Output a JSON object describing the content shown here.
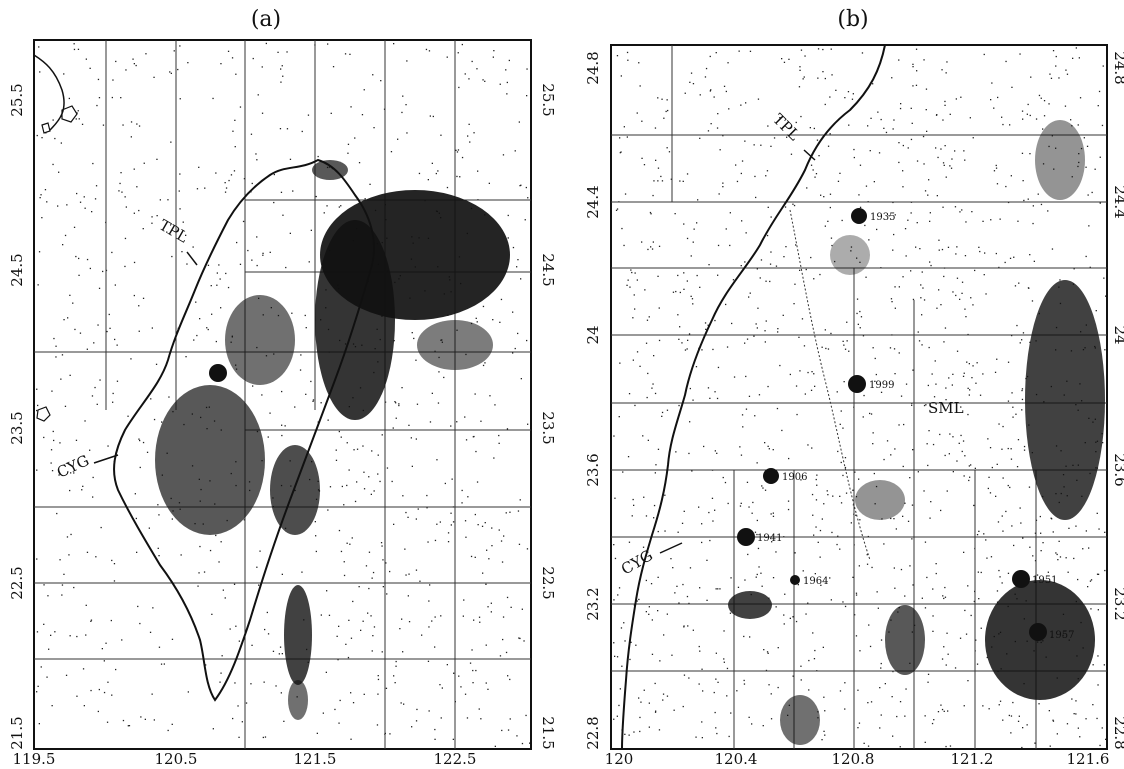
{
  "panels": [
    {
      "id": "a",
      "title": "(a)",
      "x_ticks": [
        "119.5",
        "120.5",
        "121.5",
        "122.5"
      ],
      "y_ticks": [
        "25.5",
        "24.5",
        "23.5",
        "22.5",
        "21.5"
      ],
      "stations": [
        {
          "label": "TPL"
        },
        {
          "label": "CYG"
        }
      ]
    },
    {
      "id": "b",
      "title": "(b)",
      "x_ticks": [
        "120",
        "120.4",
        "120.8",
        "121.2",
        "121.6"
      ],
      "y_ticks": [
        "24.8",
        "24.4",
        "24",
        "23.6",
        "23.2",
        "22.8"
      ],
      "stations": [
        {
          "label": "TPL"
        },
        {
          "label": "SML"
        },
        {
          "label": "CYG"
        }
      ],
      "events": [
        {
          "label": "1935"
        },
        {
          "label": "1999"
        },
        {
          "label": "1906"
        },
        {
          "label": "1941"
        },
        {
          "label": "1964"
        },
        {
          "label": "1951"
        },
        {
          "label": "1957"
        }
      ]
    }
  ]
}
